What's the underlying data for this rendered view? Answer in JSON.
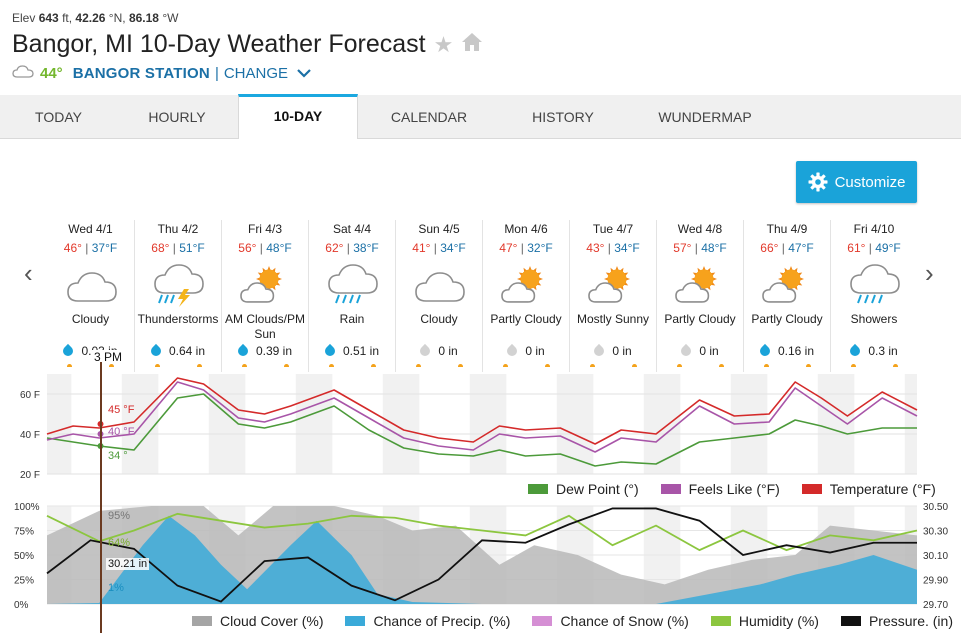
{
  "header": {
    "elev_label": "Elev",
    "elev_value": "643",
    "elev_unit": "ft,",
    "lat_value": "42.26",
    "lat_unit": "°N,",
    "lon_value": "86.18",
    "lon_unit": "°W",
    "title": "Bangor, MI 10-Day Weather Forecast",
    "current_temp": "44°",
    "station": "BANGOR STATION",
    "pipe": "|",
    "change_label": "CHANGE"
  },
  "tabs": [
    {
      "label": "TODAY"
    },
    {
      "label": "HOURLY"
    },
    {
      "label": "10-DAY"
    },
    {
      "label": "CALENDAR"
    },
    {
      "label": "HISTORY"
    },
    {
      "label": "WUNDERMAP"
    }
  ],
  "customize_label": "Customize",
  "nav": {
    "prev": "‹",
    "next": "›"
  },
  "days": [
    {
      "date": "Wed 4/1",
      "hi": "46°",
      "lo": "37°F",
      "cond": "Cloudy",
      "icon": "cloudy",
      "precip": "0.03 in",
      "drop": "blue"
    },
    {
      "date": "Thu 4/2",
      "hi": "68°",
      "lo": "51°F",
      "cond": "Thunderstorms",
      "icon": "tstorms",
      "precip": "0.64 in",
      "drop": "blue"
    },
    {
      "date": "Fri 4/3",
      "hi": "56°",
      "lo": "48°F",
      "cond": "AM Clouds/PM Sun",
      "icon": "partlycloudy",
      "precip": "0.39 in",
      "drop": "blue"
    },
    {
      "date": "Sat 4/4",
      "hi": "62°",
      "lo": "38°F",
      "cond": "Rain",
      "icon": "rain",
      "precip": "0.51 in",
      "drop": "blue"
    },
    {
      "date": "Sun 4/5",
      "hi": "41°",
      "lo": "34°F",
      "cond": "Cloudy",
      "icon": "cloudy",
      "precip": "0 in",
      "drop": "grey"
    },
    {
      "date": "Mon 4/6",
      "hi": "47°",
      "lo": "32°F",
      "cond": "Partly Cloudy",
      "icon": "partlycloudy",
      "precip": "0 in",
      "drop": "grey"
    },
    {
      "date": "Tue 4/7",
      "hi": "43°",
      "lo": "34°F",
      "cond": "Mostly Sunny",
      "icon": "partlycloudy",
      "precip": "0 in",
      "drop": "grey"
    },
    {
      "date": "Wed 4/8",
      "hi": "57°",
      "lo": "48°F",
      "cond": "Partly Cloudy",
      "icon": "partlycloudy",
      "precip": "0 in",
      "drop": "grey"
    },
    {
      "date": "Thu 4/9",
      "hi": "66°",
      "lo": "47°F",
      "cond": "Partly Cloudy",
      "icon": "partlycloudy",
      "precip": "0.16 in",
      "drop": "blue"
    },
    {
      "date": "Fri 4/10",
      "hi": "61°",
      "lo": "49°F",
      "cond": "Showers",
      "icon": "rain",
      "precip": "0.3 in",
      "drop": "blue"
    }
  ],
  "marker": {
    "time": "3 PM",
    "temp": "45 °F",
    "feels": "40 °F",
    "dew": "34 °",
    "cloud": "95%",
    "humidity": "64%",
    "pressure": "30.21 in",
    "precip_chance": "1%"
  },
  "colors": {
    "temperature": "#d42a2a",
    "feels_like": "#a855a8",
    "dew_point": "#4c9a3a",
    "cloud_cover": "#bcbcbc",
    "precip": "#3aaad9",
    "snow": "#d58fd4",
    "humidity": "#8cc63f",
    "pressure": "#111111",
    "accent": "#1aa3d9"
  },
  "temp_chart": {
    "y_ticks": [
      "60 F",
      "40 F",
      "20 F"
    ],
    "legend": [
      {
        "label": "Dew Point (°)",
        "color": "#4c9a3a"
      },
      {
        "label": "Feels Like (°F)",
        "color": "#a855a8"
      },
      {
        "label": "Temperature (°F)",
        "color": "#d42a2a"
      }
    ]
  },
  "precip_chart": {
    "y_ticks_left": [
      "100%",
      "75%",
      "50%",
      "25%",
      "0%"
    ],
    "y_ticks_right": [
      "30.50",
      "30.30",
      "30.10",
      "29.90",
      "29.70"
    ],
    "legend": [
      {
        "label": "Cloud Cover (%)",
        "color": "#a5a5a5"
      },
      {
        "label": "Chance of Precip. (%)",
        "color": "#3aaad9"
      },
      {
        "label": "Chance of Snow (%)",
        "color": "#d58fd4"
      },
      {
        "label": "Humidity (%)",
        "color": "#8cc63f"
      },
      {
        "label": "Pressure. (in)",
        "color": "#111111"
      }
    ]
  },
  "chart_data": [
    {
      "type": "line",
      "title": "",
      "x": [
        "Wed 4/1",
        "Thu 4/2",
        "Fri 4/3",
        "Sat 4/4",
        "Sun 4/5",
        "Mon 4/6",
        "Tue 4/7",
        "Wed 4/8",
        "Thu 4/9",
        "Fri 4/10"
      ],
      "ylim": [
        20,
        70
      ],
      "series": [
        {
          "name": "Temperature (°F)",
          "values": [
            [
              0,
              40
            ],
            [
              0.3,
              44
            ],
            [
              0.6,
              43
            ],
            [
              1.0,
              46
            ],
            [
              1.5,
              68
            ],
            [
              1.8,
              65
            ],
            [
              2.2,
              52
            ],
            [
              2.5,
              50
            ],
            [
              2.8,
              54
            ],
            [
              3.3,
              62
            ],
            [
              3.7,
              52
            ],
            [
              4.1,
              42
            ],
            [
              4.5,
              38
            ],
            [
              4.9,
              36
            ],
            [
              5.2,
              44
            ],
            [
              5.5,
              42
            ],
            [
              5.9,
              43
            ],
            [
              6.3,
              35
            ],
            [
              6.6,
              42
            ],
            [
              7.0,
              40
            ],
            [
              7.5,
              57
            ],
            [
              7.9,
              49
            ],
            [
              8.3,
              50
            ],
            [
              8.6,
              66
            ],
            [
              8.9,
              58
            ],
            [
              9.2,
              49
            ],
            [
              9.6,
              61
            ],
            [
              10,
              52
            ]
          ]
        },
        {
          "name": "Feels Like (°F)",
          "values": [
            [
              0,
              37
            ],
            [
              0.3,
              40
            ],
            [
              0.6,
              38
            ],
            [
              1.0,
              40
            ],
            [
              1.5,
              66
            ],
            [
              1.8,
              62
            ],
            [
              2.2,
              48
            ],
            [
              2.5,
              46
            ],
            [
              2.8,
              50
            ],
            [
              3.3,
              58
            ],
            [
              3.7,
              48
            ],
            [
              4.1,
              38
            ],
            [
              4.5,
              34
            ],
            [
              4.9,
              32
            ],
            [
              5.2,
              40
            ],
            [
              5.5,
              38
            ],
            [
              5.9,
              39
            ],
            [
              6.3,
              31
            ],
            [
              6.6,
              38
            ],
            [
              7.0,
              36
            ],
            [
              7.5,
              54
            ],
            [
              7.9,
              45
            ],
            [
              8.3,
              46
            ],
            [
              8.6,
              63
            ],
            [
              8.9,
              54
            ],
            [
              9.2,
              45
            ],
            [
              9.6,
              58
            ],
            [
              10,
              49
            ]
          ]
        },
        {
          "name": "Dew Point (°)",
          "values": [
            [
              0,
              38
            ],
            [
              0.3,
              36
            ],
            [
              0.6,
              34
            ],
            [
              1.0,
              32
            ],
            [
              1.5,
              58
            ],
            [
              1.8,
              60
            ],
            [
              2.2,
              45
            ],
            [
              2.5,
              43
            ],
            [
              2.8,
              46
            ],
            [
              3.3,
              54
            ],
            [
              3.7,
              42
            ],
            [
              4.1,
              33
            ],
            [
              4.5,
              30
            ],
            [
              4.9,
              29
            ],
            [
              5.2,
              32
            ],
            [
              5.5,
              29
            ],
            [
              5.9,
              30
            ],
            [
              6.3,
              24
            ],
            [
              6.6,
              26
            ],
            [
              7.0,
              25
            ],
            [
              7.5,
              36
            ],
            [
              7.9,
              38
            ],
            [
              8.3,
              40
            ],
            [
              8.6,
              47
            ],
            [
              8.9,
              44
            ],
            [
              9.2,
              40
            ],
            [
              9.6,
              43
            ],
            [
              10,
              43
            ]
          ]
        }
      ]
    },
    {
      "type": "area",
      "title": "",
      "x": [
        "Wed 4/1",
        "Thu 4/2",
        "Fri 4/3",
        "Sat 4/4",
        "Sun 4/5",
        "Mon 4/6",
        "Tue 4/7",
        "Wed 4/8",
        "Thu 4/9",
        "Fri 4/10"
      ],
      "ylim": [
        0,
        100
      ],
      "y2lim": [
        29.7,
        30.5
      ],
      "series": [
        {
          "name": "Cloud Cover (%)",
          "values": [
            [
              0,
              70
            ],
            [
              0.6,
              95
            ],
            [
              1.2,
              100
            ],
            [
              1.8,
              100
            ],
            [
              2.2,
              70
            ],
            [
              2.6,
              100
            ],
            [
              3.3,
              100
            ],
            [
              3.8,
              90
            ],
            [
              4.2,
              75
            ],
            [
              4.7,
              80
            ],
            [
              5.2,
              40
            ],
            [
              5.6,
              60
            ],
            [
              6.1,
              50
            ],
            [
              6.6,
              30
            ],
            [
              7.1,
              20
            ],
            [
              7.6,
              35
            ],
            [
              8.1,
              45
            ],
            [
              8.6,
              50
            ],
            [
              9.0,
              80
            ],
            [
              9.5,
              75
            ],
            [
              10,
              70
            ]
          ]
        },
        {
          "name": "Chance of Precip. (%)",
          "values": [
            [
              0,
              0
            ],
            [
              0.6,
              1
            ],
            [
              1.1,
              60
            ],
            [
              1.4,
              90
            ],
            [
              1.7,
              70
            ],
            [
              2.0,
              40
            ],
            [
              2.3,
              15
            ],
            [
              2.8,
              60
            ],
            [
              3.1,
              85
            ],
            [
              3.5,
              50
            ],
            [
              3.8,
              10
            ],
            [
              4.2,
              2
            ],
            [
              5,
              0
            ],
            [
              6,
              0
            ],
            [
              7,
              0
            ],
            [
              7.6,
              10
            ],
            [
              8.2,
              20
            ],
            [
              8.6,
              30
            ],
            [
              9.1,
              40
            ],
            [
              9.5,
              50
            ],
            [
              10,
              35
            ]
          ]
        },
        {
          "name": "Chance of Snow (%)",
          "values": [
            [
              0,
              0
            ],
            [
              10,
              0
            ]
          ]
        },
        {
          "name": "Humidity (%)",
          "values": [
            [
              0,
              90
            ],
            [
              0.6,
              64
            ],
            [
              1.0,
              75
            ],
            [
              1.5,
              92
            ],
            [
              2.0,
              85
            ],
            [
              2.5,
              78
            ],
            [
              3.0,
              82
            ],
            [
              3.5,
              90
            ],
            [
              4.0,
              88
            ],
            [
              4.5,
              80
            ],
            [
              5.0,
              75
            ],
            [
              5.5,
              70
            ],
            [
              6.0,
              90
            ],
            [
              6.5,
              60
            ],
            [
              7.0,
              80
            ],
            [
              7.5,
              55
            ],
            [
              8.0,
              75
            ],
            [
              8.5,
              55
            ],
            [
              9.0,
              70
            ],
            [
              9.5,
              65
            ],
            [
              10,
              75
            ]
          ]
        },
        {
          "name": "Pressure. (in)",
          "values": [
            [
              0,
              29.95
            ],
            [
              0.5,
              30.22
            ],
            [
              1.0,
              30.15
            ],
            [
              1.5,
              29.85
            ],
            [
              2.0,
              29.72
            ],
            [
              2.5,
              30.05
            ],
            [
              3.0,
              30.08
            ],
            [
              3.5,
              29.85
            ],
            [
              4.0,
              29.73
            ],
            [
              4.5,
              29.9
            ],
            [
              5.0,
              30.22
            ],
            [
              5.5,
              30.2
            ],
            [
              6.0,
              30.35
            ],
            [
              6.5,
              30.48
            ],
            [
              7.0,
              30.48
            ],
            [
              7.5,
              30.38
            ],
            [
              8.0,
              30.1
            ],
            [
              8.5,
              30.18
            ],
            [
              9.0,
              30.12
            ],
            [
              9.5,
              30.2
            ],
            [
              10,
              30.2
            ]
          ]
        }
      ]
    }
  ]
}
